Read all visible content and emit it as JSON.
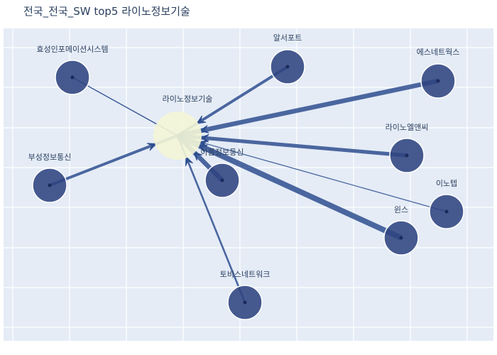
{
  "title": "전국_전국_SW top5 라이노정보기술",
  "colors": {
    "plot_bg": "#e5ecf6",
    "grid": "#ffffff",
    "node_fill": "#2f4481",
    "center_fill": "#f3f6d6",
    "edge": "#2f4f8f",
    "text": "#2a3f5f"
  },
  "network": {
    "center": {
      "name": "라이노정보기술"
    },
    "nodes": [
      {
        "id": "hyosung",
        "name": "효성인포메이션시스템",
        "direction": "out",
        "weight": 1
      },
      {
        "id": "alseoport",
        "name": "알서포트",
        "direction": "in",
        "weight": 3
      },
      {
        "id": "esnetworks",
        "name": "에스네트웍스",
        "direction": "in",
        "weight": 5
      },
      {
        "id": "bosung",
        "name": "부성정보통신",
        "direction": "in",
        "weight": 3
      },
      {
        "id": "rinoLnc",
        "name": "라이노엘앤씨",
        "direction": "in",
        "weight": 4
      },
      {
        "id": "arum",
        "name": "아름정보통신",
        "direction": "in",
        "weight": 5
      },
      {
        "id": "inotep",
        "name": "이노텝",
        "direction": "in",
        "weight": 1
      },
      {
        "id": "wins",
        "name": "윈스",
        "direction": "in",
        "weight": 6
      },
      {
        "id": "tobesoft",
        "name": "토비스네트워크",
        "direction": "in",
        "weight": 2
      }
    ]
  }
}
